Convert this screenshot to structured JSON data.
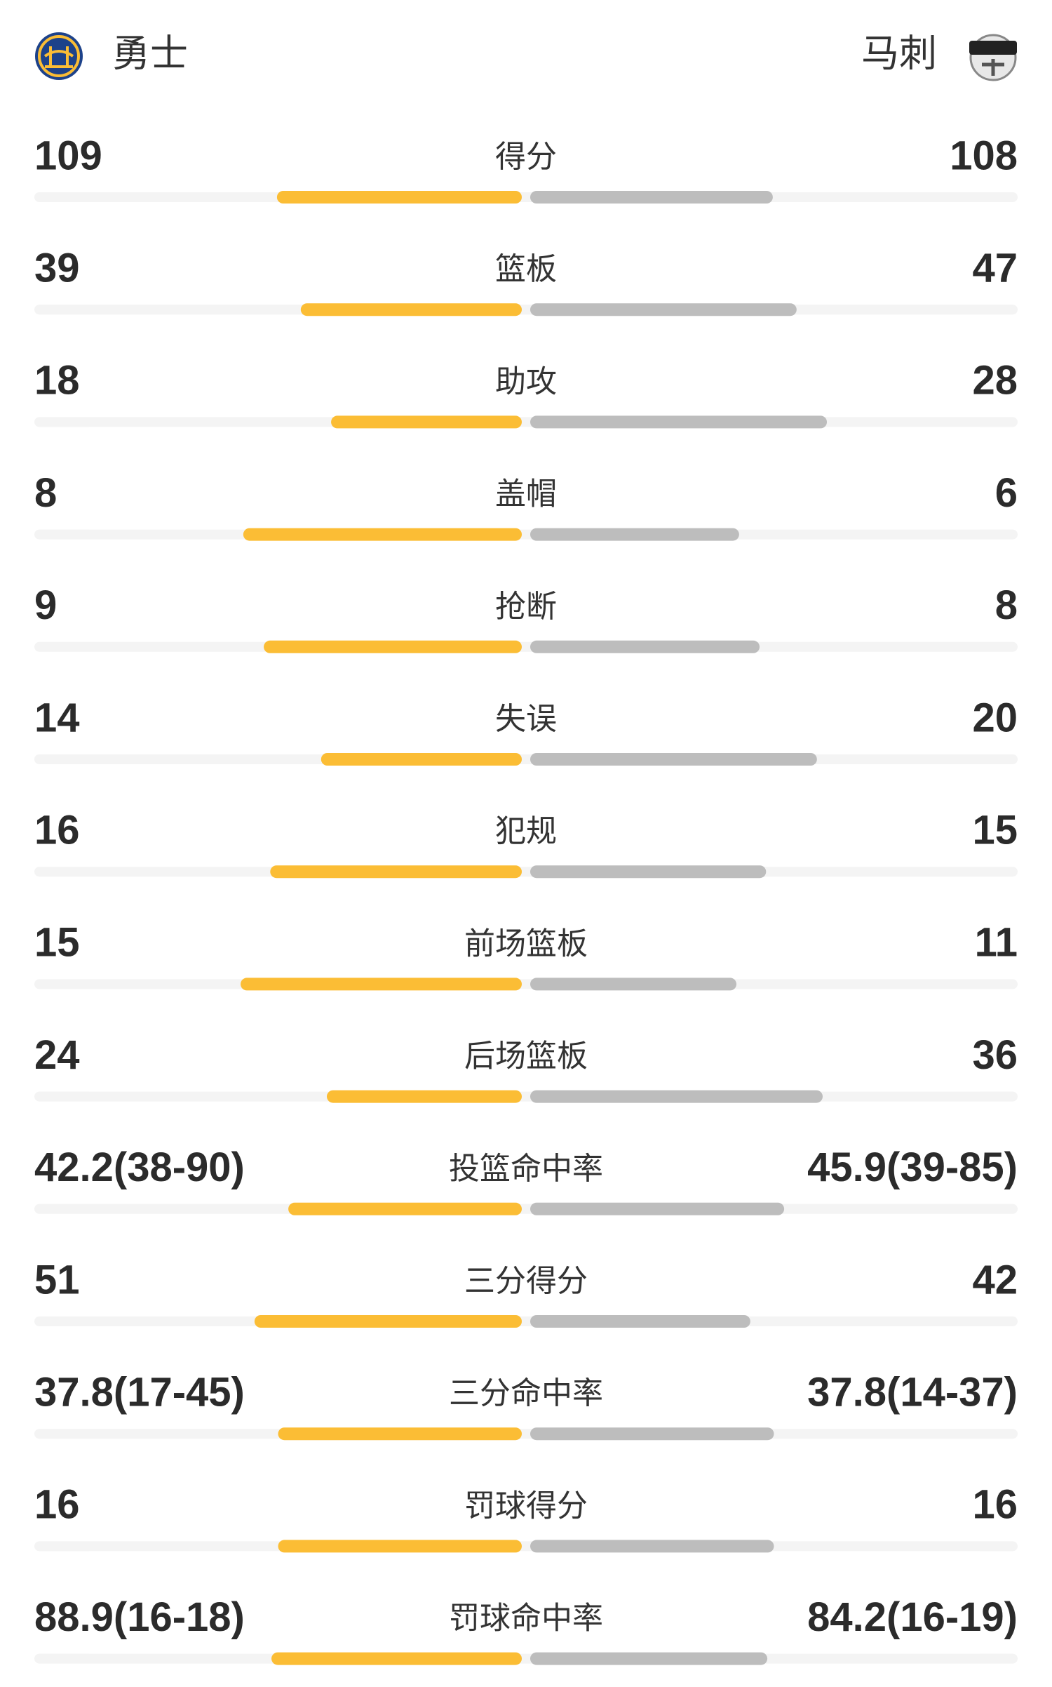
{
  "teams": {
    "home": "勇士",
    "away": "马刺"
  },
  "home_color": "#fbbd35",
  "away_color": "#bdbdbd",
  "stats": [
    {
      "label": "得分",
      "home": 109,
      "away": 108
    },
    {
      "label": "篮板",
      "home": 39,
      "away": 47
    },
    {
      "label": "助攻",
      "home": 18,
      "away": 28
    },
    {
      "label": "盖帽",
      "home": 8,
      "away": 6
    },
    {
      "label": "抢断",
      "home": 9,
      "away": 8
    },
    {
      "label": "失误",
      "home": 14,
      "away": 20
    },
    {
      "label": "犯规",
      "home": 16,
      "away": 15
    },
    {
      "label": "前场篮板",
      "home": 15,
      "away": 11
    },
    {
      "label": "后场篮板",
      "home": 24,
      "away": 36
    },
    {
      "label": "投篮命中率",
      "home": 42.2,
      "away": 45.9,
      "home_label": "42.2(38-90)",
      "away_label": "45.9(39-85)"
    },
    {
      "label": "三分得分",
      "home": 51,
      "away": 42
    },
    {
      "label": "三分命中率",
      "home": 37.8,
      "away": 37.8,
      "home_label": "37.8(17-45)",
      "away_label": "37.8(14-37)"
    },
    {
      "label": "罚球得分",
      "home": 16,
      "away": 16
    },
    {
      "label": "罚球命中率",
      "home": 88.9,
      "away": 84.2,
      "home_label": "88.9(16-18)",
      "away_label": "84.2(16-19)"
    }
  ]
}
